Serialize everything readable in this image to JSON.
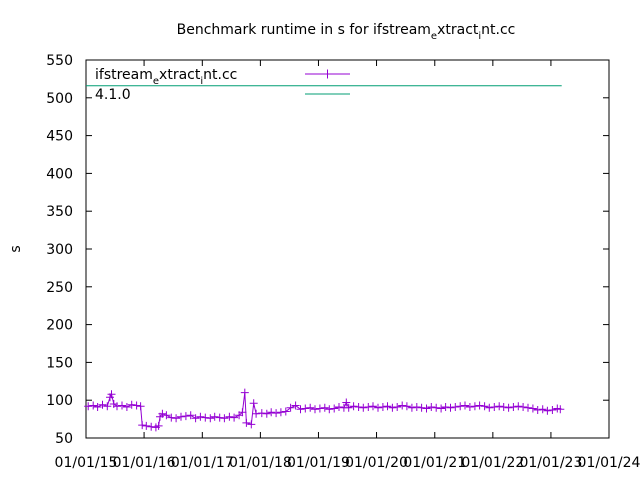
{
  "chart_data": {
    "type": "line",
    "title": "Benchmark runtime in s for ifstream",
    "title_sub1": "e",
    "title_mid": "xtract",
    "title_sub2": "i",
    "title_end": "nt.cc",
    "xlabel": "",
    "ylabel": "s",
    "ylim": [
      50,
      550
    ],
    "yticks": [
      50,
      100,
      150,
      200,
      250,
      300,
      350,
      400,
      450,
      500,
      550
    ],
    "xlim": [
      "2015-01-01",
      "2024-01-01"
    ],
    "xticks": [
      "01/01/15",
      "01/01/16",
      "01/01/17",
      "01/01/18",
      "01/01/19",
      "01/01/20",
      "01/01/21",
      "01/01/22",
      "01/01/23",
      "01/01/24"
    ],
    "grid": false,
    "legend_position": "top-left",
    "series": [
      {
        "name": "ifstream",
        "name_sub1": "e",
        "name_mid": "xtract",
        "name_sub2": "i",
        "name_end": "nt.cc",
        "color": "#9400d3",
        "marker": "plus",
        "points": [
          [
            "2015-01-15",
            92
          ],
          [
            "2015-02-15",
            93
          ],
          [
            "2015-03-15",
            91
          ],
          [
            "2015-04-15",
            94
          ],
          [
            "2015-05-15",
            92
          ],
          [
            "2015-06-01",
            104
          ],
          [
            "2015-06-10",
            108
          ],
          [
            "2015-06-25",
            95
          ],
          [
            "2015-07-15",
            92
          ],
          [
            "2015-08-15",
            93
          ],
          [
            "2015-09-15",
            91
          ],
          [
            "2015-10-15",
            94
          ],
          [
            "2015-11-15",
            93
          ],
          [
            "2015-12-10",
            92
          ],
          [
            "2015-12-20",
            67
          ],
          [
            "2016-01-15",
            66
          ],
          [
            "2016-02-15",
            65
          ],
          [
            "2016-03-15",
            64
          ],
          [
            "2016-04-01",
            66
          ],
          [
            "2016-04-10",
            78
          ],
          [
            "2016-04-25",
            82
          ],
          [
            "2016-05-20",
            80
          ],
          [
            "2016-06-20",
            77
          ],
          [
            "2016-07-20",
            76
          ],
          [
            "2016-08-20",
            78
          ],
          [
            "2016-09-20",
            79
          ],
          [
            "2016-10-20",
            80
          ],
          [
            "2016-11-20",
            76
          ],
          [
            "2016-12-20",
            78
          ],
          [
            "2017-01-20",
            77
          ],
          [
            "2017-02-20",
            76
          ],
          [
            "2017-03-20",
            78
          ],
          [
            "2017-04-20",
            77
          ],
          [
            "2017-05-20",
            76
          ],
          [
            "2017-06-20",
            78
          ],
          [
            "2017-07-20",
            77
          ],
          [
            "2017-08-20",
            80
          ],
          [
            "2017-09-10",
            84
          ],
          [
            "2017-09-25",
            110
          ],
          [
            "2017-10-05",
            70
          ],
          [
            "2017-11-05",
            68
          ],
          [
            "2017-11-20",
            96
          ],
          [
            "2017-12-05",
            82
          ],
          [
            "2018-01-10",
            83
          ],
          [
            "2018-02-10",
            82
          ],
          [
            "2018-03-10",
            84
          ],
          [
            "2018-04-10",
            83
          ],
          [
            "2018-05-10",
            84
          ],
          [
            "2018-06-10",
            85
          ],
          [
            "2018-07-10",
            90
          ],
          [
            "2018-08-10",
            93
          ],
          [
            "2018-09-10",
            88
          ],
          [
            "2018-10-10",
            89
          ],
          [
            "2018-11-10",
            90
          ],
          [
            "2018-12-10",
            88
          ],
          [
            "2019-01-10",
            89
          ],
          [
            "2019-02-10",
            90
          ],
          [
            "2019-03-10",
            88
          ],
          [
            "2019-04-10",
            89
          ],
          [
            "2019-05-10",
            91
          ],
          [
            "2019-06-10",
            90
          ],
          [
            "2019-06-25",
            97
          ],
          [
            "2019-07-10",
            90
          ],
          [
            "2019-08-10",
            92
          ],
          [
            "2019-09-10",
            91
          ],
          [
            "2019-10-10",
            90
          ],
          [
            "2019-11-10",
            91
          ],
          [
            "2019-12-10",
            92
          ],
          [
            "2020-01-10",
            90
          ],
          [
            "2020-02-10",
            91
          ],
          [
            "2020-03-10",
            92
          ],
          [
            "2020-04-10",
            90
          ],
          [
            "2020-05-10",
            91
          ],
          [
            "2020-06-10",
            93
          ],
          [
            "2020-07-10",
            92
          ],
          [
            "2020-08-10",
            90
          ],
          [
            "2020-09-10",
            91
          ],
          [
            "2020-10-10",
            90
          ],
          [
            "2020-11-10",
            89
          ],
          [
            "2020-12-10",
            91
          ],
          [
            "2021-01-10",
            90
          ],
          [
            "2021-02-10",
            89
          ],
          [
            "2021-03-10",
            91
          ],
          [
            "2021-04-10",
            90
          ],
          [
            "2021-05-10",
            91
          ],
          [
            "2021-06-10",
            92
          ],
          [
            "2021-07-10",
            93
          ],
          [
            "2021-08-10",
            91
          ],
          [
            "2021-09-10",
            92
          ],
          [
            "2021-10-10",
            93
          ],
          [
            "2021-11-10",
            92
          ],
          [
            "2021-12-10",
            90
          ],
          [
            "2022-01-10",
            91
          ],
          [
            "2022-02-10",
            92
          ],
          [
            "2022-03-10",
            91
          ],
          [
            "2022-04-10",
            90
          ],
          [
            "2022-05-10",
            91
          ],
          [
            "2022-06-10",
            92
          ],
          [
            "2022-07-10",
            91
          ],
          [
            "2022-08-10",
            90
          ],
          [
            "2022-09-10",
            89
          ],
          [
            "2022-10-10",
            87
          ],
          [
            "2022-11-10",
            88
          ],
          [
            "2022-12-10",
            86
          ],
          [
            "2023-01-10",
            87
          ],
          [
            "2023-02-10",
            89
          ],
          [
            "2023-03-01",
            88
          ]
        ]
      },
      {
        "name": "4.1.0",
        "color": "#009e73",
        "marker": "none",
        "points": [
          [
            "2015-01-01",
            516
          ],
          [
            "2023-03-10",
            516
          ]
        ]
      }
    ]
  }
}
